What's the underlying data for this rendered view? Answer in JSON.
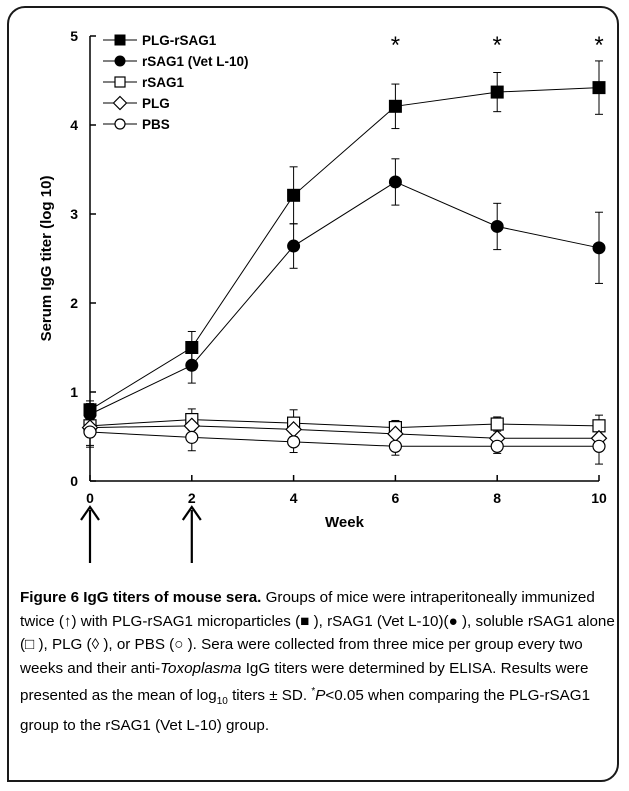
{
  "chart_data": {
    "type": "line",
    "title": "",
    "xlabel": "Week",
    "ylabel": "Serum IgG titer (log 10)",
    "xlim": [
      0,
      10
    ],
    "ylim": [
      0,
      5
    ],
    "x_ticks": [
      "0",
      "2",
      "4",
      "6",
      "8",
      "10"
    ],
    "y_ticks": [
      "0",
      "1",
      "2",
      "3",
      "4",
      "5"
    ],
    "x": [
      0,
      2,
      4,
      6,
      8,
      10
    ],
    "legend_position": "top-left",
    "grid": false,
    "series": [
      {
        "name": "PLG-rSAG1",
        "marker": "filled-square",
        "values": [
          0.8,
          1.5,
          3.21,
          4.21,
          4.37,
          4.42
        ],
        "errors": [
          0.1,
          0.18,
          0.32,
          0.25,
          0.22,
          0.3
        ]
      },
      {
        "name": "rSAG1 (Vet L-10)",
        "marker": "filled-circle",
        "values": [
          0.75,
          1.3,
          2.64,
          3.36,
          2.86,
          2.62
        ],
        "errors": [
          0.12,
          0.2,
          0.25,
          0.26,
          0.26,
          0.4
        ]
      },
      {
        "name": "rSAG1",
        "marker": "open-square",
        "values": [
          0.62,
          0.69,
          0.65,
          0.6,
          0.64,
          0.62
        ],
        "errors": [
          0.05,
          0.12,
          0.15,
          0.08,
          0.08,
          0.12
        ]
      },
      {
        "name": "PLG",
        "marker": "open-diamond",
        "values": [
          0.6,
          0.62,
          0.58,
          0.53,
          0.48,
          0.48
        ],
        "errors": [
          0.2,
          0.12,
          0.1,
          0.1,
          0.1,
          0.1
        ]
      },
      {
        "name": "PBS",
        "marker": "open-circle",
        "values": [
          0.55,
          0.49,
          0.44,
          0.39,
          0.39,
          0.39
        ],
        "errors": [
          0.17,
          0.15,
          0.12,
          0.1,
          0.08,
          0.2
        ]
      }
    ],
    "annotations": [
      {
        "text": "*",
        "x": 6
      },
      {
        "text": "*",
        "x": 8
      },
      {
        "text": "*",
        "x": 10
      }
    ],
    "immunization_weeks": [
      0,
      2
    ],
    "immunization_marker": "up-arrow"
  },
  "caption": {
    "title": "Figure 6 IgG titers of mouse sera.",
    "segments": [
      {
        "text": " Groups of mice were intraperitoneally immunized twice (↑) with PLG-rSAG1 microparticles (■ ), rSAG1 (Vet L-10)(● ), soluble rSAG1 alone (□ ), PLG (◊ ), or PBS (○ ). Sera were collected from three mice per group every two weeks and their anti-"
      },
      {
        "text": "Toxoplasma",
        "style": "italic"
      },
      {
        "text": " IgG titers were determined by ELISA. Results were presented as the mean of log"
      },
      {
        "text": "10",
        "style": "sub"
      },
      {
        "text": " titers ± SD. "
      },
      {
        "text": "*",
        "style": "sup"
      },
      {
        "text": "P",
        "style": "italic"
      },
      {
        "text": "<0.05 when comparing the PLG-rSAG1 group to the rSAG1 (Vet L-10) group."
      }
    ]
  }
}
